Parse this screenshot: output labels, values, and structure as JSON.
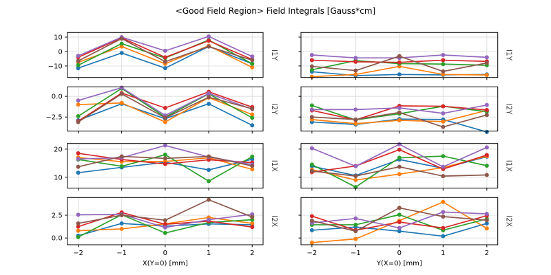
{
  "title": "<Good Field Region> Field Integrals [Gauss*cm]",
  "chart_data": {
    "type": "line",
    "title": "<Good Field Region> Field Integrals [Gauss*cm]",
    "grid": true,
    "legend": "none",
    "marker": "circle",
    "x": [
      -2,
      -1,
      0,
      1,
      2
    ],
    "xlim": [
      -2.25,
      2.25
    ],
    "xticklabels": [
      "−2",
      "−1",
      "0",
      "1",
      "2"
    ],
    "columns": [
      {
        "xlabel": "X(Y=0) [mm]"
      },
      {
        "xlabel": "Y(X=0) [mm]"
      }
    ],
    "series_colors": [
      {
        "name": "series-1",
        "color": "#1f77b4"
      },
      {
        "name": "series-2",
        "color": "#ff7f0e"
      },
      {
        "name": "series-3",
        "color": "#2ca02c"
      },
      {
        "name": "series-4",
        "color": "#d62728"
      },
      {
        "name": "series-5",
        "color": "#9467bd"
      },
      {
        "name": "series-6",
        "color": "#8c564b"
      }
    ],
    "rows": [
      {
        "ylabel": "I1Y",
        "ylim": [
          -18.0,
          13.2
        ],
        "yticks": [
          {
            "v": 10,
            "label": "10"
          },
          {
            "v": 0,
            "label": "0"
          },
          {
            "v": -10,
            "label": "−10"
          }
        ],
        "plots": [
          {
            "col": 0,
            "series": [
              {
                "color": "#1f77b4",
                "values": [
                  -11.5,
                  -1.0,
                  -11.5,
                  3.5,
                  -8.5
                ]
              },
              {
                "color": "#ff7f0e",
                "values": [
                  -7.5,
                  3.5,
                  -8.5,
                  4.0,
                  -11.0
                ]
              },
              {
                "color": "#2ca02c",
                "values": [
                  -9.5,
                  5.5,
                  -4.5,
                  8.0,
                  -8.5
                ]
              },
              {
                "color": "#d62728",
                "values": [
                  -4.0,
                  9.5,
                  -4.0,
                  7.5,
                  -5.5
                ]
              },
              {
                "color": "#9467bd",
                "values": [
                  -3.0,
                  10.0,
                  0.5,
                  10.5,
                  -3.5
                ]
              },
              {
                "color": "#8c564b",
                "values": [
                  -6.5,
                  9.0,
                  -7.0,
                  3.5,
                  -6.0
                ]
              }
            ]
          },
          {
            "col": 1,
            "series": [
              {
                "color": "#1f77b4",
                "values": [
                  -14.0,
                  -16.7,
                  -15.9,
                  -16.2,
                  -15.9
                ]
              },
              {
                "color": "#ff7f0e",
                "values": [
                  -17.5,
                  -15.9,
                  -10.3,
                  -15.9,
                  -16.3
                ]
              },
              {
                "color": "#2ca02c",
                "values": [
                  -12.7,
                  -6.3,
                  -8.4,
                  -8.7,
                  -9.5
                ]
              },
              {
                "color": "#d62728",
                "values": [
                  -6.0,
                  -7.1,
                  -7.5,
                  -6.0,
                  -6.8
                ]
              },
              {
                "color": "#9467bd",
                "values": [
                  -2.4,
                  -4.4,
                  -4.4,
                  -2.4,
                  -4.0
                ]
              },
              {
                "color": "#8c564b",
                "values": [
                  -10.3,
                  -13.2,
                  -3.2,
                  -13.8,
                  -7.9
                ]
              }
            ]
          }
        ]
      },
      {
        "ylabel": "I2Y",
        "ylim": [
          -4.2,
          1.15
        ],
        "yticks": [
          {
            "v": 0.0,
            "label": "0.0"
          },
          {
            "v": -2.5,
            "label": "−2.5"
          }
        ],
        "plots": [
          {
            "col": 0,
            "series": [
              {
                "color": "#1f77b4",
                "values": [
                  -2.9,
                  -0.9,
                  -2.7,
                  -0.9,
                  -3.5
                ]
              },
              {
                "color": "#ff7f0e",
                "values": [
                  -1.0,
                  -0.8,
                  -3.1,
                  -0.15,
                  -2.2
                ]
              },
              {
                "color": "#2ca02c",
                "values": [
                  -2.4,
                  0.95,
                  -2.5,
                  0.3,
                  -2.6
                ]
              },
              {
                "color": "#d62728",
                "values": [
                  -3.0,
                  0.4,
                  -1.4,
                  0.55,
                  -1.3
                ]
              },
              {
                "color": "#9467bd",
                "values": [
                  -0.5,
                  1.05,
                  -2.3,
                  0.35,
                  -1.55
                ]
              },
              {
                "color": "#8c564b",
                "values": [
                  -3.1,
                  0.3,
                  -2.6,
                  -0.1,
                  -1.5
                ]
              }
            ]
          },
          {
            "col": 1,
            "series": [
              {
                "color": "#1f77b4",
                "values": [
                  -3.1,
                  -3.4,
                  -2.75,
                  -2.8,
                  -4.3
                ]
              },
              {
                "color": "#ff7f0e",
                "values": [
                  -2.8,
                  -3.3,
                  -2.9,
                  -3.05,
                  -1.7
                ]
              },
              {
                "color": "#2ca02c",
                "values": [
                  -1.1,
                  -2.85,
                  -2.1,
                  -1.2,
                  -1.85
                ]
              },
              {
                "color": "#d62728",
                "values": [
                  -1.7,
                  -2.85,
                  -1.15,
                  -1.2,
                  -1.65
                ]
              },
              {
                "color": "#9467bd",
                "values": [
                  -1.6,
                  -1.6,
                  -1.4,
                  -2.05,
                  -1.05
                ]
              },
              {
                "color": "#8c564b",
                "values": [
                  -2.5,
                  -2.8,
                  -1.95,
                  -3.7,
                  -2.25
                ]
              }
            ]
          }
        ]
      },
      {
        "ylabel": "I1X",
        "ylim": [
          6.1,
          22.0
        ],
        "yticks": [
          {
            "v": 20,
            "label": "20"
          },
          {
            "v": 10,
            "label": "10"
          }
        ],
        "plots": [
          {
            "col": 0,
            "series": [
              {
                "color": "#1f77b4",
                "values": [
                  11.6,
                  13.5,
                  15.3,
                  12.6,
                  16.4
                ]
              },
              {
                "color": "#ff7f0e",
                "values": [
                  17.0,
                  15.5,
                  15.6,
                  16.9,
                  12.8
                ]
              },
              {
                "color": "#2ca02c",
                "values": [
                  16.3,
                  13.9,
                  18.0,
                  8.6,
                  17.3
                ]
              },
              {
                "color": "#d62728",
                "values": [
                  18.5,
                  16.3,
                  14.7,
                  16.2,
                  15.2
                ]
              },
              {
                "color": "#9467bd",
                "values": [
                  16.5,
                  16.9,
                  21.3,
                  17.2,
                  14.5
                ]
              },
              {
                "color": "#8c564b",
                "values": [
                  13.7,
                  17.4,
                  16.7,
                  17.4,
                  14.0
                ]
              }
            ]
          },
          {
            "col": 1,
            "series": [
              {
                "color": "#1f77b4",
                "values": [
                  13.9,
                  10.6,
                  16.3,
                  13.2,
                  17.3
                ]
              },
              {
                "color": "#ff7f0e",
                "values": [
                  12.7,
                  9.0,
                  11.1,
                  13.4,
                  17.5
                ]
              },
              {
                "color": "#2ca02c",
                "values": [
                  14.5,
                  6.5,
                  16.9,
                  17.5,
                  14.1
                ]
              },
              {
                "color": "#d62728",
                "values": [
                  11.8,
                  14.0,
                  19.8,
                  12.9,
                  17.9
                ]
              },
              {
                "color": "#9467bd",
                "values": [
                  20.3,
                  13.9,
                  21.7,
                  13.7,
                  20.6
                ]
              },
              {
                "color": "#8c564b",
                "values": [
                  12.2,
                  10.4,
                  13.7,
                  10.4,
                  10.8
                ]
              }
            ]
          }
        ]
      },
      {
        "ylabel": "I2X",
        "ylim": [
          -0.74,
          4.44
        ],
        "yticks": [
          {
            "v": 2.5,
            "label": "2.5"
          },
          {
            "v": 0.0,
            "label": "0.0"
          }
        ],
        "plots": [
          {
            "col": 0,
            "series": [
              {
                "color": "#1f77b4",
                "values": [
                  0.25,
                  1.6,
                  1.3,
                  1.55,
                  1.45
                ]
              },
              {
                "color": "#ff7f0e",
                "values": [
                  0.8,
                  1.0,
                  1.55,
                  2.25,
                  1.6
                ]
              },
              {
                "color": "#2ca02c",
                "values": [
                  0.1,
                  2.55,
                  0.55,
                  1.7,
                  2.0
                ]
              },
              {
                "color": "#d62728",
                "values": [
                  1.25,
                  2.8,
                  1.5,
                  1.85,
                  1.2
                ]
              },
              {
                "color": "#9467bd",
                "values": [
                  2.55,
                  2.6,
                  1.15,
                  2.0,
                  2.6
                ]
              },
              {
                "color": "#8c564b",
                "values": [
                  1.6,
                  2.5,
                  1.95,
                  4.2,
                  2.3
                ]
              }
            ]
          },
          {
            "col": 1,
            "series": [
              {
                "color": "#1f77b4",
                "values": [
                  0.85,
                  1.2,
                  0.75,
                  0.2,
                  1.6
                ]
              },
              {
                "color": "#ff7f0e",
                "values": [
                  -0.5,
                  -0.1,
                  1.9,
                  3.95,
                  1.05
                ]
              },
              {
                "color": "#2ca02c",
                "values": [
                  1.45,
                  1.45,
                  2.55,
                  0.85,
                  2.1
                ]
              },
              {
                "color": "#d62728",
                "values": [
                  2.4,
                  0.85,
                  1.75,
                  1.1,
                  2.45
                ]
              },
              {
                "color": "#9467bd",
                "values": [
                  1.65,
                  2.15,
                  1.1,
                  2.85,
                  2.65
                ]
              },
              {
                "color": "#8c564b",
                "values": [
                  1.9,
                  0.75,
                  3.3,
                  2.35,
                  1.95
                ]
              }
            ]
          }
        ]
      }
    ],
    "style": {
      "grid_color": "#dcdcdc",
      "spine_color": "#000000",
      "tick_label_color": "#000000",
      "row_label_color": "#3f3f3f"
    }
  }
}
